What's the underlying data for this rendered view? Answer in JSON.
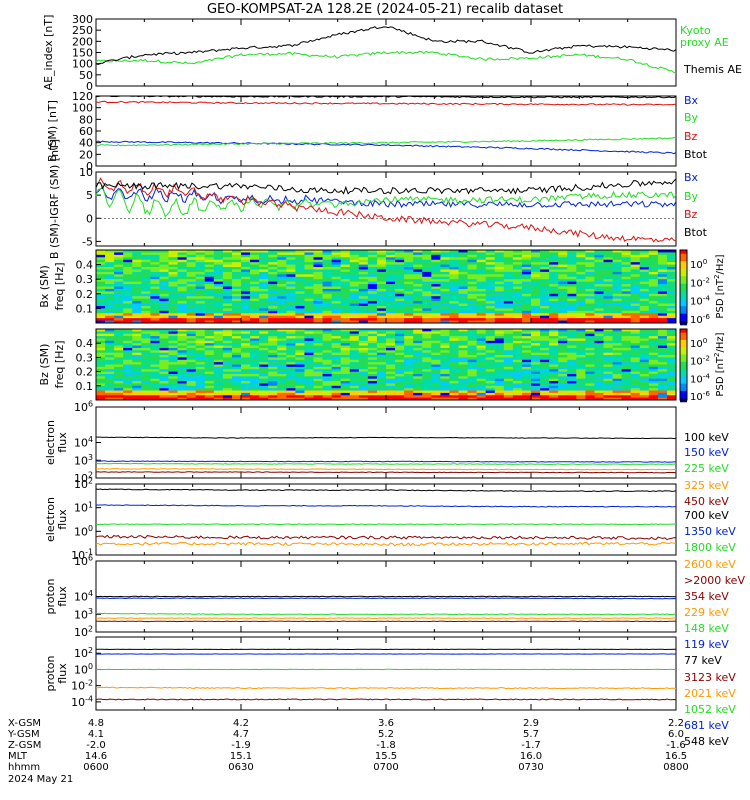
{
  "title": "GEO-KOMPSAT-2A 128.2E (2024-05-21) recalib dataset",
  "ephemeris": {
    "rows": [
      {
        "label": "X-GSM",
        "values": [
          "4.8",
          "4.2",
          "3.6",
          "2.9",
          "2.2"
        ]
      },
      {
        "label": "Y-GSM",
        "values": [
          "4.1",
          "4.7",
          "5.2",
          "5.7",
          "6.0"
        ]
      },
      {
        "label": "Z-GSM",
        "values": [
          "-2.0",
          "-1.9",
          "-1.8",
          "-1.7",
          "-1.6"
        ]
      },
      {
        "label": "MLT",
        "values": [
          "14.6",
          "15.1",
          "15.5",
          "16.0",
          "16.5"
        ]
      },
      {
        "label": "hhmm",
        "values": [
          "0600",
          "0630",
          "0700",
          "0730",
          "0800"
        ]
      }
    ],
    "date": "2024 May 21"
  },
  "colors": {
    "black": "#000000",
    "blue": "#0022dd",
    "green": "#22dd22",
    "red": "#dd1111",
    "orange": "#ff9900",
    "darkred": "#880000"
  },
  "chart_data": [
    {
      "type": "line",
      "panel": "ae-index",
      "ylabel": "AE_index [nT]",
      "ylim": [
        0,
        300
      ],
      "yticks": [
        "0",
        "50",
        "100",
        "150",
        "200",
        "250",
        "300"
      ],
      "x": [
        "0600",
        "0610",
        "0620",
        "0630",
        "0640",
        "0650",
        "0700",
        "0710",
        "0720",
        "0730",
        "0740",
        "0750",
        "0800"
      ],
      "series": [
        {
          "name": "Kyoto proxy AE",
          "color": "green",
          "values": [
            110,
            115,
            100,
            140,
            145,
            130,
            150,
            150,
            120,
            125,
            140,
            120,
            60
          ]
        },
        {
          "name": "Themis AE",
          "color": "black",
          "values": [
            100,
            140,
            150,
            170,
            180,
            230,
            270,
            200,
            200,
            150,
            180,
            175,
            160
          ]
        }
      ]
    },
    {
      "type": "line",
      "panel": "b-sm",
      "ylabel": "B (SM) [nT]",
      "ylim": [
        0,
        120
      ],
      "yticks": [
        "0",
        "20",
        "40",
        "60",
        "80",
        "100",
        "120"
      ],
      "x": [
        "0600",
        "0630",
        "0700",
        "0730",
        "0800"
      ],
      "series": [
        {
          "name": "Bx",
          "color": "blue",
          "values": [
            42,
            39,
            36,
            30,
            22
          ]
        },
        {
          "name": "By",
          "color": "green",
          "values": [
            35,
            38,
            40,
            43,
            48
          ]
        },
        {
          "name": "Bz",
          "color": "red",
          "values": [
            110,
            108,
            107,
            106,
            105
          ]
        },
        {
          "name": "Btot",
          "color": "black",
          "values": [
            120,
            119,
            119,
            118,
            118
          ]
        }
      ]
    },
    {
      "type": "line",
      "panel": "b-minus-igrf",
      "ylabel": "B (SM)-IGRF (SM) [nT]",
      "ylim": [
        -6,
        10
      ],
      "yticks": [
        "-5",
        "0",
        "5",
        "10"
      ],
      "x": [
        "0600",
        "0615",
        "0630",
        "0645",
        "0700",
        "0715",
        "0730",
        "0745",
        "0800"
      ],
      "series": [
        {
          "name": "Bx",
          "color": "blue",
          "values": [
            5,
            5,
            4,
            4,
            3,
            3,
            3,
            3,
            3
          ]
        },
        {
          "name": "By",
          "color": "green",
          "values": [
            5,
            2,
            3,
            3,
            4,
            4,
            4,
            5,
            5
          ]
        },
        {
          "name": "Bz",
          "color": "red",
          "values": [
            7,
            6,
            4,
            2,
            0,
            -1,
            -2,
            -4,
            -5
          ]
        },
        {
          "name": "Btot",
          "color": "black",
          "values": [
            7,
            7,
            7,
            6,
            6,
            6,
            6,
            7,
            8
          ]
        }
      ]
    },
    {
      "type": "heatmap",
      "panel": "bx-spectrogram",
      "ylabel": "Bx (SM) freq [Hz]",
      "ylim": [
        0,
        0.5
      ],
      "yticks": [
        "0.1",
        "0.2",
        "0.3",
        "0.4"
      ],
      "colorbar": {
        "label": "PSD [nT^2/Hz]",
        "ticks": [
          "10^0",
          "10^-2",
          "10^-4",
          "10^-6"
        ]
      }
    },
    {
      "type": "heatmap",
      "panel": "bz-spectrogram",
      "ylabel": "Bz (SM) freq [Hz]",
      "ylim": [
        0,
        0.5
      ],
      "yticks": [
        "0.1",
        "0.2",
        "0.3",
        "0.4"
      ],
      "colorbar": {
        "label": "PSD [nT^2/Hz]",
        "ticks": [
          "10^0",
          "10^-2",
          "10^-4",
          "10^-6"
        ]
      }
    },
    {
      "type": "line",
      "panel": "electron-flux-low",
      "ylabel": "electron flux",
      "scale": "log",
      "ylim": [
        100,
        1000000
      ],
      "yticks": [
        "10^2",
        "10^3",
        "10^4",
        "10^6"
      ],
      "x": [
        "0600",
        "0630",
        "0700",
        "0730",
        "0800"
      ],
      "series": [
        {
          "name": "100 keV",
          "color": "black",
          "values": [
            20000,
            18000,
            19000,
            18000,
            17000
          ]
        },
        {
          "name": "150 keV",
          "color": "blue",
          "values": [
            900,
            850,
            850,
            820,
            800
          ]
        },
        {
          "name": "225 keV",
          "color": "green",
          "values": [
            650,
            620,
            620,
            600,
            600
          ]
        },
        {
          "name": "325 keV",
          "color": "orange",
          "values": [
            330,
            320,
            310,
            300,
            300
          ]
        },
        {
          "name": "450 keV",
          "color": "darkred",
          "values": [
            220,
            215,
            210,
            205,
            200
          ]
        }
      ]
    },
    {
      "type": "line",
      "panel": "electron-flux-high",
      "ylabel": "electron flux",
      "scale": "log",
      "ylim": [
        0.1,
        100
      ],
      "yticks": [
        "10^-1",
        "10^0",
        "10^1",
        "10^2"
      ],
      "x": [
        "0600",
        "0630",
        "0700",
        "0730",
        "0800"
      ],
      "series": [
        {
          "name": "700 keV",
          "color": "black",
          "values": [
            60,
            55,
            55,
            50,
            50
          ]
        },
        {
          "name": "1350 keV",
          "color": "blue",
          "values": [
            13,
            12,
            12,
            11,
            11
          ]
        },
        {
          "name": "1800 keV",
          "color": "green",
          "values": [
            2,
            2,
            2,
            2,
            2
          ]
        },
        {
          "name": "2600 keV",
          "color": "orange",
          "values": [
            0.3,
            0.3,
            0.28,
            0.3,
            0.3
          ]
        },
        {
          "name": ">2000 keV",
          "color": "darkred",
          "values": [
            0.6,
            0.55,
            0.55,
            0.55,
            0.5
          ]
        }
      ]
    },
    {
      "type": "line",
      "panel": "proton-flux-low",
      "ylabel": "proton flux",
      "scale": "log",
      "ylim": [
        100,
        1000000
      ],
      "yticks": [
        "10^2",
        "10^3",
        "10^4",
        "10^6"
      ],
      "x": [
        "0600",
        "0630",
        "0700",
        "0730",
        "0800"
      ],
      "series": [
        {
          "name": "354 keV",
          "color": "darkred",
          "values": [
            400,
            400,
            400,
            400,
            400
          ]
        },
        {
          "name": "229 keV",
          "color": "orange",
          "values": [
            600,
            600,
            600,
            600,
            600
          ]
        },
        {
          "name": "148 keV",
          "color": "green",
          "values": [
            1100,
            1000,
            1000,
            1000,
            1000
          ]
        },
        {
          "name": "119 keV",
          "color": "blue",
          "values": [
            8000,
            8000,
            8000,
            8000,
            7500
          ]
        },
        {
          "name": "77 keV",
          "color": "black",
          "values": [
            10000,
            10000,
            10000,
            10000,
            10000
          ]
        }
      ]
    },
    {
      "type": "line",
      "panel": "proton-flux-high",
      "ylabel": "proton flux",
      "scale": "log",
      "ylim": [
        1e-05,
        10000
      ],
      "yticks": [
        "10^-4",
        "10^-2",
        "10^0",
        "10^2"
      ],
      "x": [
        "0600",
        "0630",
        "0700",
        "0730",
        "0800"
      ],
      "series": [
        {
          "name": "3123 keV",
          "color": "darkred",
          "values": [
            0.0002,
            0.0002,
            0.0002,
            0.0002,
            0.0002
          ]
        },
        {
          "name": "2021 keV",
          "color": "orange",
          "values": [
            0.006,
            0.005,
            0.005,
            0.005,
            0.005
          ]
        },
        {
          "name": "1052 keV",
          "color": "green",
          "values": [
            1,
            1,
            1,
            1,
            1
          ]
        },
        {
          "name": "681 keV",
          "color": "blue",
          "values": [
            80,
            80,
            80,
            80,
            80
          ]
        },
        {
          "name": "548 keV",
          "color": "black",
          "values": [
            300,
            300,
            300,
            300,
            300
          ]
        }
      ]
    }
  ]
}
